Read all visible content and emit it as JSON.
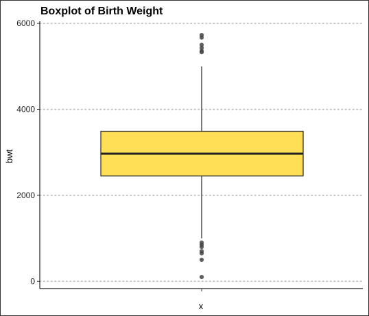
{
  "chart_data": {
    "type": "boxplot",
    "title": "Boxplot of Birth Weight",
    "xlabel": "x",
    "ylabel": "bwt",
    "ylim": [
      -170,
      6050
    ],
    "yticks": [
      0,
      2000,
      4000,
      6000
    ],
    "ytick_labels": [
      "0",
      "2000",
      "4000",
      "6000"
    ],
    "grid": "horizontal dotted",
    "box": {
      "whisker_low": 1000,
      "q1": 2450,
      "median": 2970,
      "q3": 3490,
      "whisker_high": 5000,
      "outliers": [
        5730,
        5670,
        5500,
        5430,
        5360,
        5330,
        900,
        850,
        800,
        700,
        650,
        500,
        100
      ]
    },
    "colors": {
      "box_fill": "#FFDF55",
      "box_stroke": "#333333",
      "outlier": "#444444",
      "grid": "#BBBBBB"
    }
  }
}
